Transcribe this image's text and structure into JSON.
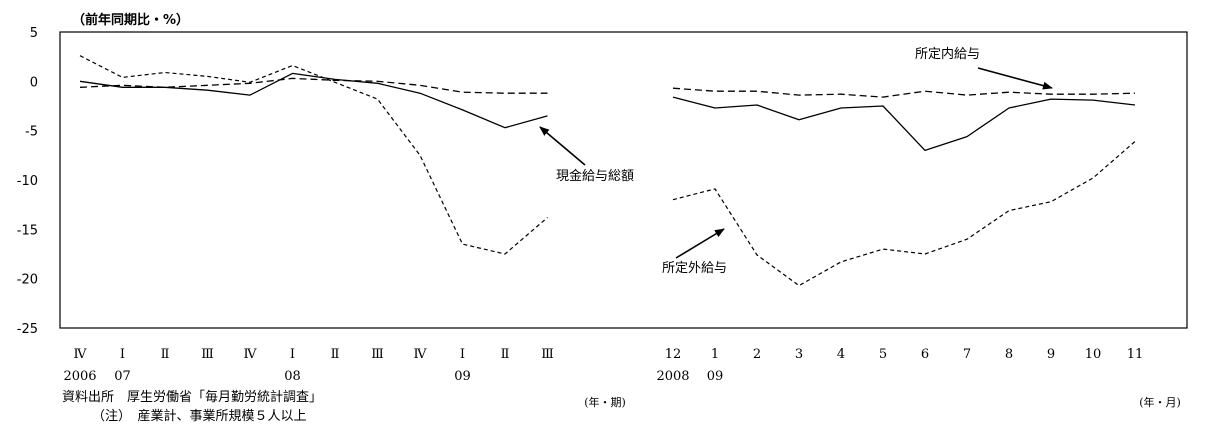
{
  "unit_label": "（前年同期比・%）",
  "source_text": "資料出所　厚生労働省「毎月勤労統計調査」",
  "note_text": "（注）　産業計、事業所規模５人以上",
  "chart_data": {
    "type": "line",
    "ylim": [
      -25,
      5
    ],
    "yticks": [
      "5",
      "0",
      "-5",
      "-10",
      "-15",
      "-20",
      "-25"
    ],
    "grid": false,
    "panels": [
      {
        "id": "quarterly",
        "categories": [
          "Ⅳ",
          "Ⅰ",
          "Ⅱ",
          "Ⅲ",
          "Ⅳ",
          "Ⅰ",
          "Ⅱ",
          "Ⅲ",
          "Ⅳ",
          "Ⅰ",
          "Ⅱ",
          "Ⅲ"
        ],
        "year_labels": [
          {
            "index": 0,
            "text": "2006"
          },
          {
            "index": 1,
            "text": "07"
          },
          {
            "index": 5,
            "text": "08"
          },
          {
            "index": 9,
            "text": "09"
          }
        ],
        "x_unit": "(年・期)",
        "series": [
          {
            "name": "現金給与総額",
            "style": "solid",
            "values": [
              0.0,
              -0.6,
              -0.6,
              -0.9,
              -1.4,
              0.8,
              0.2,
              -0.2,
              -1.2,
              -2.9,
              -4.7,
              -3.5
            ]
          },
          {
            "name": "所定内給与",
            "style": "dash",
            "values": [
              -0.6,
              -0.4,
              -0.6,
              -0.4,
              -0.2,
              0.3,
              0.1,
              0.0,
              -0.4,
              -1.1,
              -1.2,
              -1.2
            ]
          },
          {
            "name": "所定外給与",
            "style": "dot",
            "values": [
              2.6,
              0.4,
              0.9,
              0.5,
              -0.1,
              1.6,
              -0.1,
              -1.8,
              -7.5,
              -16.5,
              -17.5,
              -13.8
            ]
          }
        ]
      },
      {
        "id": "monthly",
        "categories": [
          "12",
          "1",
          "2",
          "3",
          "4",
          "5",
          "6",
          "7",
          "8",
          "9",
          "10",
          "11"
        ],
        "year_labels": [
          {
            "index": 0,
            "text": "2008"
          },
          {
            "index": 1,
            "text": "09"
          }
        ],
        "x_unit": "(年・月)",
        "series": [
          {
            "name": "現金給与総額",
            "style": "solid",
            "values": [
              -1.6,
              -2.7,
              -2.4,
              -3.9,
              -2.7,
              -2.5,
              -7.0,
              -5.6,
              -2.7,
              -1.8,
              -1.9,
              -2.4
            ]
          },
          {
            "name": "所定内給与",
            "style": "dash",
            "values": [
              -0.7,
              -1.0,
              -1.0,
              -1.4,
              -1.3,
              -1.6,
              -1.0,
              -1.4,
              -1.1,
              -1.3,
              -1.3,
              -1.2
            ]
          },
          {
            "name": "所定外給与",
            "style": "dot",
            "values": [
              -12.0,
              -10.9,
              -17.6,
              -20.7,
              -18.3,
              -17.0,
              -17.5,
              -16.0,
              -13.1,
              -12.2,
              -9.8,
              -6.1
            ]
          }
        ]
      }
    ],
    "annotations": [
      {
        "text": "所定内給与",
        "points_to": "所定内給与"
      },
      {
        "text": "現金給与総額",
        "points_to": "現金給与総額"
      },
      {
        "text": "所定外給与",
        "points_to": "所定外給与"
      }
    ]
  }
}
